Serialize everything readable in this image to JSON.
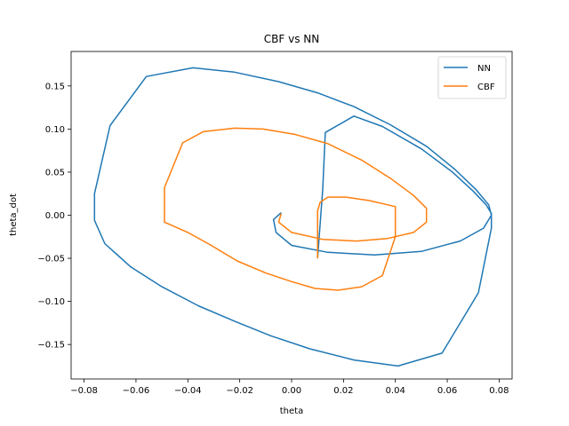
{
  "chart_data": {
    "type": "line",
    "title": "CBF vs NN",
    "xlabel": "theta",
    "ylabel": "theta_dot",
    "xlim": [
      -0.085,
      0.085
    ],
    "ylim": [
      -0.19,
      0.19
    ],
    "xticks": [
      -0.08,
      -0.06,
      -0.04,
      -0.02,
      0.0,
      0.02,
      0.04,
      0.06,
      0.08
    ],
    "xtick_labels": [
      "−0.08",
      "−0.06",
      "−0.04",
      "−0.02",
      "0.00",
      "0.02",
      "0.04",
      "0.06",
      "0.08"
    ],
    "yticks": [
      -0.15,
      -0.1,
      -0.05,
      0.0,
      0.05,
      0.1,
      0.15
    ],
    "ytick_labels": [
      "−0.15",
      "−0.10",
      "−0.05",
      "0.00",
      "0.05",
      "0.10",
      "0.15"
    ],
    "grid": false,
    "legend_position": "top-right",
    "series": [
      {
        "name": "NN",
        "color": "#1f77b4",
        "x": [
          0.01,
          0.012,
          0.013,
          0.024,
          0.035,
          0.05,
          0.062,
          0.07,
          0.075,
          0.077,
          0.077,
          0.072,
          0.058,
          0.041,
          0.024,
          0.007,
          -0.008,
          -0.022,
          -0.036,
          -0.05,
          -0.062,
          -0.072,
          -0.076,
          -0.076,
          -0.07,
          -0.056,
          -0.038,
          -0.022,
          -0.005,
          0.01,
          0.024,
          0.038,
          0.052,
          0.063,
          0.071,
          0.076,
          0.077,
          0.074,
          0.065,
          0.05,
          0.032,
          0.014,
          0.0,
          -0.006,
          -0.007,
          -0.004
        ],
        "y": [
          -0.05,
          0.03,
          0.096,
          0.115,
          0.103,
          0.077,
          0.05,
          0.028,
          0.012,
          0.002,
          -0.015,
          -0.09,
          -0.16,
          -0.175,
          -0.168,
          -0.155,
          -0.14,
          -0.123,
          -0.105,
          -0.083,
          -0.06,
          -0.033,
          -0.006,
          0.025,
          0.104,
          0.161,
          0.171,
          0.166,
          0.155,
          0.142,
          0.126,
          0.105,
          0.08,
          0.053,
          0.03,
          0.012,
          0.0,
          -0.015,
          -0.03,
          -0.042,
          -0.046,
          -0.043,
          -0.035,
          -0.02,
          -0.005,
          0.003
        ]
      },
      {
        "name": "CBF",
        "color": "#ff7f0e",
        "x": [
          0.01,
          0.01,
          0.011,
          0.014,
          0.021,
          0.03,
          0.04,
          0.04,
          0.035,
          0.027,
          0.018,
          0.009,
          0.0,
          -0.01,
          -0.021,
          -0.031,
          -0.04,
          -0.049,
          -0.049,
          -0.042,
          -0.034,
          -0.022,
          -0.011,
          0.001,
          0.014,
          0.027,
          0.038,
          0.047,
          0.052,
          0.052,
          0.047,
          0.037,
          0.025,
          0.012,
          0.0,
          -0.005,
          -0.004
        ],
        "y": [
          -0.05,
          0.005,
          0.015,
          0.021,
          0.021,
          0.017,
          0.01,
          -0.025,
          -0.07,
          -0.083,
          -0.087,
          -0.085,
          -0.077,
          -0.067,
          -0.053,
          -0.035,
          -0.02,
          -0.008,
          0.032,
          0.084,
          0.097,
          0.101,
          0.1,
          0.094,
          0.083,
          0.064,
          0.043,
          0.023,
          0.008,
          -0.008,
          -0.02,
          -0.027,
          -0.03,
          -0.028,
          -0.02,
          -0.008,
          0.002
        ]
      }
    ]
  }
}
